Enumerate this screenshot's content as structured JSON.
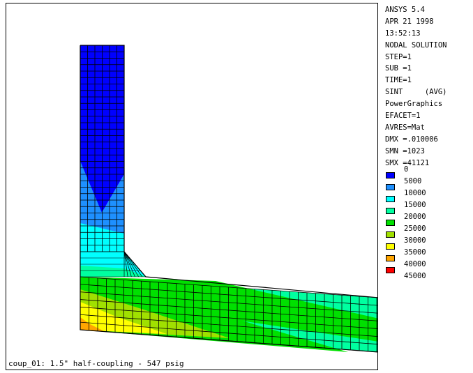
{
  "info_lines": [
    "ANSYS 5.4",
    "APR 21 1998",
    "13:52:13",
    "NODAL SOLUTION",
    "STEP=1",
    "SUB =1",
    "TIME=1",
    "SINT     (AVG)",
    "PowerGraphics",
    "EFACET=1",
    "AVRES=Mat",
    "DMX =.010006",
    "SMN =1023",
    "SMX =41121"
  ],
  "legend": [
    {
      "label": "0",
      "color": "#0000ff"
    },
    {
      "label": "5000",
      "color": "#1e90ff"
    },
    {
      "label": "10000",
      "color": "#00ffff"
    },
    {
      "label": "15000",
      "color": "#00ffa0"
    },
    {
      "label": "20000",
      "color": "#00e000"
    },
    {
      "label": "25000",
      "color": "#a0e000"
    },
    {
      "label": "30000",
      "color": "#ffff00"
    },
    {
      "label": "35000",
      "color": "#ffa500"
    },
    {
      "label": "40000",
      "color": "#ff0000"
    },
    {
      "label": "45000",
      "color": ""
    }
  ],
  "caption": "coup_01: 1.5\" half-coupling - 547 psig"
}
